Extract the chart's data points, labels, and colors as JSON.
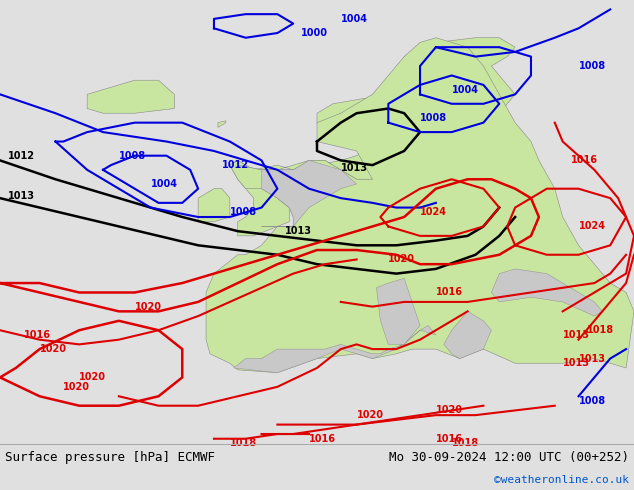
{
  "title_left": "Surface pressure [hPa] ECMWF",
  "title_right": "Mo 30-09-2024 12:00 UTC (00+252)",
  "copyright": "©weatheronline.co.uk",
  "bg_color": "#c8c8c8",
  "land_color": "#c8e6a0",
  "coast_color": "#888888",
  "footer_bg": "#e0e0e0",
  "black_iso": "#000000",
  "blue_iso": "#0000dd",
  "red_iso": "#dd0000",
  "copyright_color": "#0055cc"
}
